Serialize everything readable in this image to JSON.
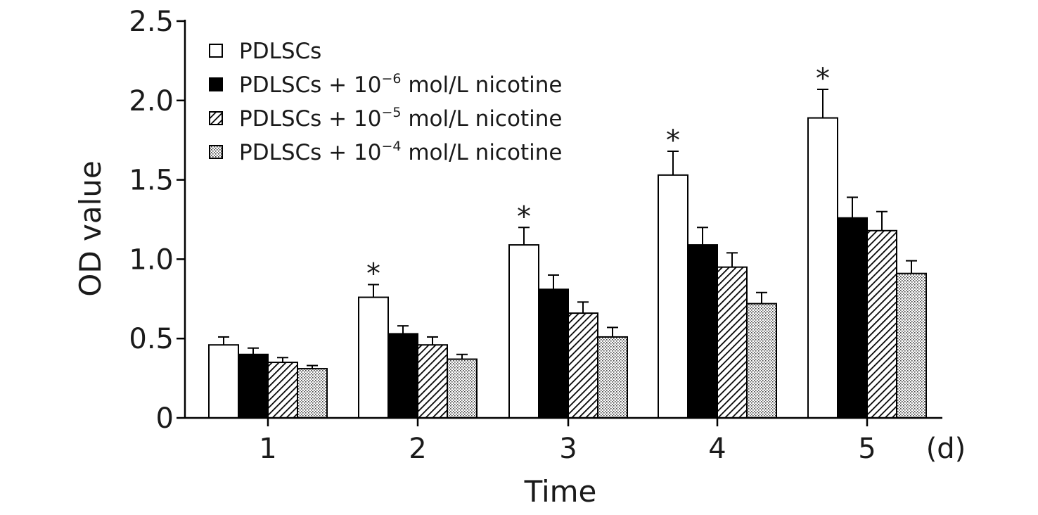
{
  "chart_data": {
    "type": "bar",
    "categories": [
      "1",
      "2",
      "3",
      "4",
      "5"
    ],
    "x_unit": "(d)",
    "xlabel": "Time",
    "ylabel": "OD value",
    "ylim": [
      0,
      2.5
    ],
    "yticks": [
      {
        "value": 0,
        "label": "0"
      },
      {
        "value": 0.5,
        "label": "0.5"
      },
      {
        "value": 1.0,
        "label": "1.0"
      },
      {
        "value": 1.5,
        "label": "1.5"
      },
      {
        "value": 2.0,
        "label": "2.0"
      },
      {
        "value": 2.5,
        "label": "2.5"
      }
    ],
    "legend_position": "top-left",
    "series": [
      {
        "name": "PDLSCs",
        "name_main": "PDLSCs",
        "name_sup": "",
        "name_tail": "",
        "pattern": "open",
        "values": [
          0.46,
          0.76,
          1.09,
          1.53,
          1.89
        ],
        "errors": [
          0.05,
          0.08,
          0.11,
          0.15,
          0.18
        ]
      },
      {
        "name": "PDLSCs + 10−6 mol/L nicotine",
        "name_main": "PDLSCs + 10",
        "name_sup": "−6",
        "name_tail": " mol/L nicotine",
        "pattern": "solid",
        "values": [
          0.4,
          0.53,
          0.81,
          1.09,
          1.26
        ],
        "errors": [
          0.04,
          0.05,
          0.09,
          0.11,
          0.13
        ]
      },
      {
        "name": "PDLSCs + 10−5 mol/L nicotine",
        "name_main": "PDLSCs + 10",
        "name_sup": "−5",
        "name_tail": " mol/L nicotine",
        "pattern": "hatched",
        "values": [
          0.35,
          0.46,
          0.66,
          0.95,
          1.18
        ],
        "errors": [
          0.03,
          0.05,
          0.07,
          0.09,
          0.12
        ]
      },
      {
        "name": "PDLSCs + 10−4 mol/L nicotine",
        "name_main": "PDLSCs + 10",
        "name_sup": "−4",
        "name_tail": " mol/L nicotine",
        "pattern": "dotted",
        "values": [
          0.31,
          0.37,
          0.51,
          0.72,
          0.91
        ],
        "errors": [
          0.02,
          0.03,
          0.06,
          0.07,
          0.08
        ]
      }
    ],
    "annotations": [
      {
        "category_index": 1,
        "series_index": 0,
        "text": "*"
      },
      {
        "category_index": 2,
        "series_index": 0,
        "text": "*"
      },
      {
        "category_index": 3,
        "series_index": 0,
        "text": "*"
      },
      {
        "category_index": 4,
        "series_index": 0,
        "text": "*"
      }
    ],
    "colors": {
      "axis": "#000000",
      "bar_outline": "#000000",
      "solid_fill": "#000000",
      "open_fill": "#ffffff"
    }
  }
}
